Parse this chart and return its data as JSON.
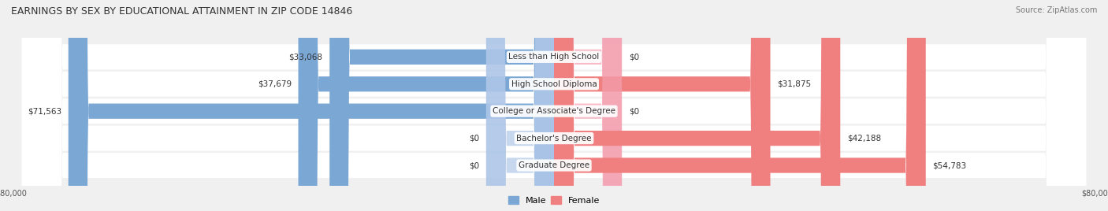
{
  "title": "EARNINGS BY SEX BY EDUCATIONAL ATTAINMENT IN ZIP CODE 14846",
  "source": "Source: ZipAtlas.com",
  "categories": [
    "Less than High School",
    "High School Diploma",
    "College or Associate's Degree",
    "Bachelor's Degree",
    "Graduate Degree"
  ],
  "male_values": [
    33068,
    37679,
    71563,
    0,
    0
  ],
  "female_values": [
    0,
    31875,
    0,
    42188,
    54783
  ],
  "male_color": "#7ba7d4",
  "female_color": "#f08080",
  "male_color_light": "#aec6e8",
  "female_color_light": "#f4a0b0",
  "x_min": -80000,
  "x_max": 80000,
  "bar_height": 0.55,
  "background_color": "#f0f0f0",
  "title_fontsize": 9,
  "label_fontsize": 7.5,
  "axis_label_fontsize": 7,
  "legend_fontsize": 8
}
